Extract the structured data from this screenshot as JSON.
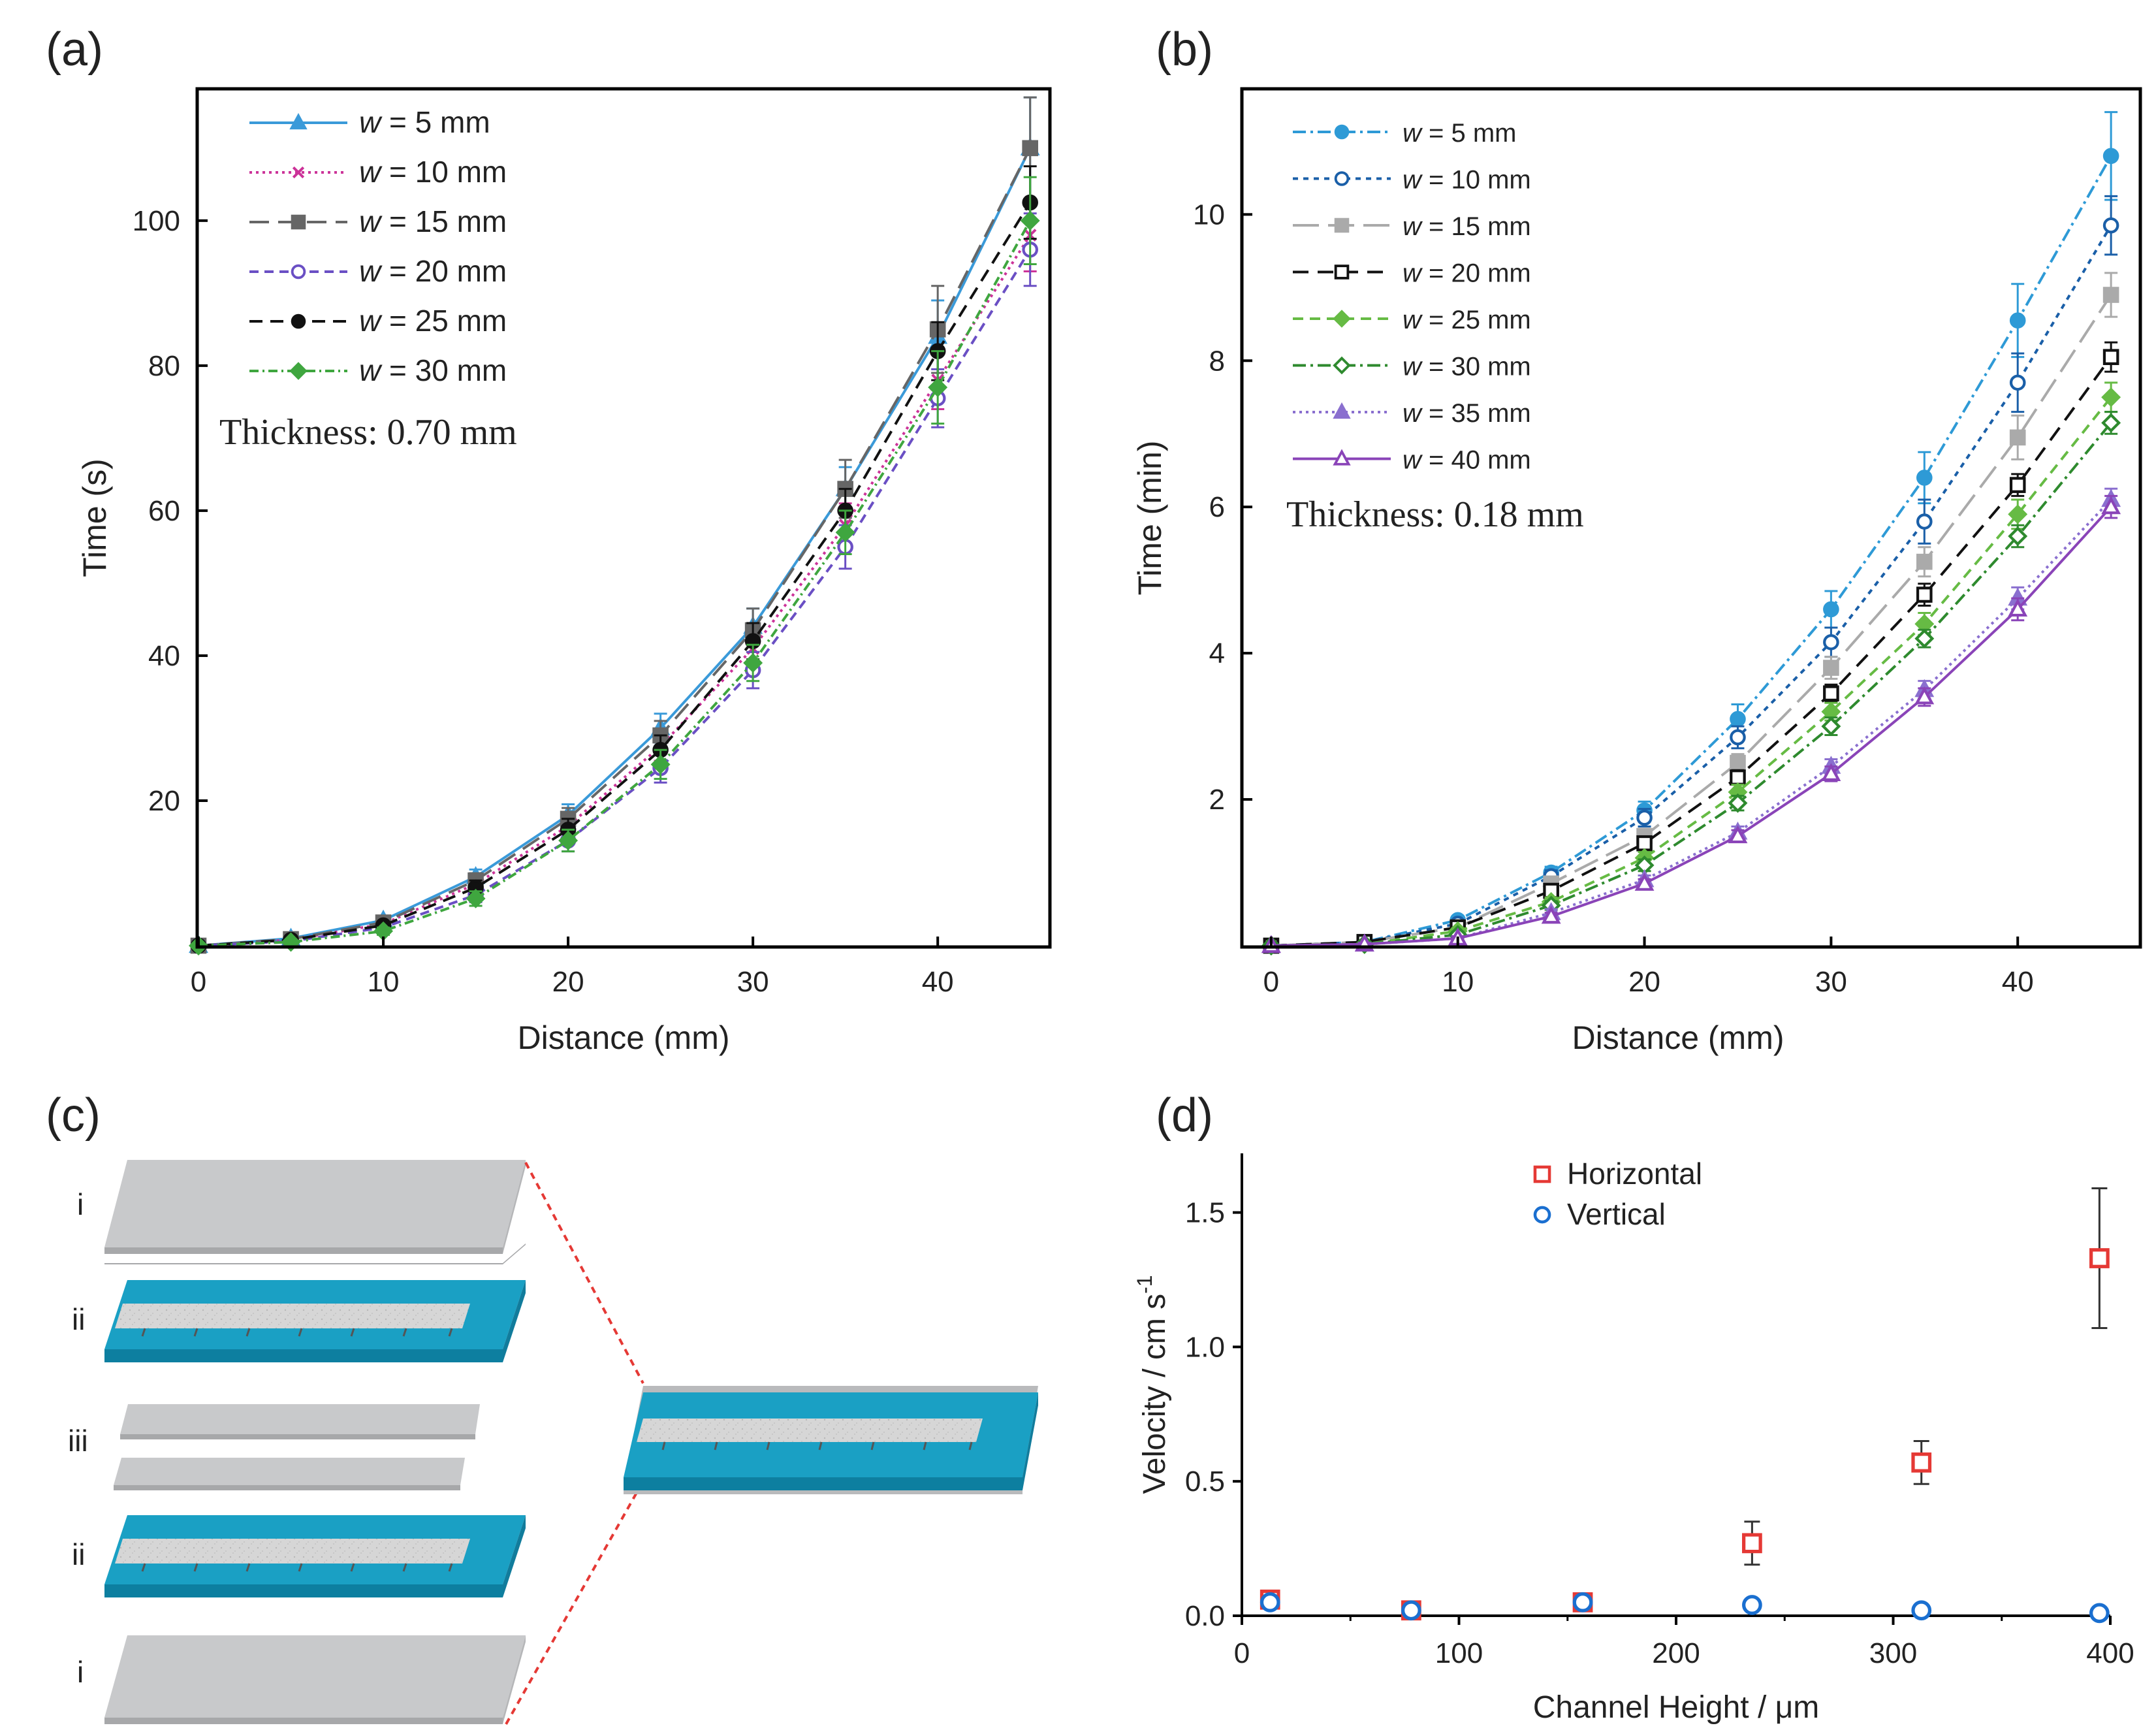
{
  "panels": {
    "a": "(a)",
    "b": "(b)",
    "c": "(c)",
    "d": "(d)"
  },
  "chart_data": [
    {
      "id": "a",
      "type": "line",
      "xlabel": "Distance (mm)",
      "ylabel": "Time (s)",
      "xlim": [
        0,
        46
      ],
      "ylim": [
        0,
        118
      ],
      "xticks": [
        0,
        10,
        20,
        30,
        40
      ],
      "yticks": [
        20,
        40,
        60,
        80,
        100
      ],
      "annotation": "Thickness: 0.70 mm",
      "x": [
        0,
        5,
        10,
        15,
        20,
        25,
        30,
        35,
        40,
        45
      ],
      "series": [
        {
          "name": "w = 5 mm",
          "var": "w",
          "rest": " = 5 mm",
          "color": "#3a9ad9",
          "dash": "",
          "marker": "tri",
          "values": [
            0,
            1,
            3.5,
            9.5,
            18,
            30,
            44,
            63,
            84,
            110
          ],
          "err": [
            0,
            0.3,
            0.5,
            1,
            1.5,
            2,
            2.5,
            3,
            5,
            7
          ]
        },
        {
          "name": "w = 10 mm",
          "var": "w",
          "rest": " = 10 mm",
          "color": "#cc3399",
          "dash": "4 6",
          "marker": "x",
          "values": [
            0,
            0.8,
            3,
            8.5,
            16.5,
            27.5,
            41,
            58,
            78,
            98
          ],
          "err": [
            0,
            0.3,
            0.5,
            1,
            1.5,
            2,
            2.5,
            3,
            4,
            5
          ]
        },
        {
          "name": "w = 15 mm",
          "var": "w",
          "rest": " = 15 mm",
          "color": "#666666",
          "dash": "30 14",
          "marker": "sq",
          "values": [
            0,
            0.9,
            3.2,
            9,
            17.5,
            29,
            43.5,
            63,
            85,
            110
          ],
          "err": [
            0,
            0.3,
            0.5,
            1,
            1.5,
            2,
            3,
            4,
            6,
            7
          ]
        },
        {
          "name": "w = 20 mm",
          "var": "w",
          "rest": " = 20 mm",
          "color": "#6a4fc4",
          "dash": "14 9",
          "marker": "ocirc",
          "values": [
            0,
            0.6,
            2.5,
            7,
            14.5,
            24.5,
            38,
            55,
            75.5,
            96
          ],
          "err": [
            0,
            0.3,
            0.5,
            1,
            1.5,
            2,
            2.5,
            3,
            4,
            5
          ]
        },
        {
          "name": "w = 25 mm",
          "var": "w",
          "rest": " = 25 mm",
          "color": "#111111",
          "dash": "20 12",
          "marker": "dot",
          "values": [
            0,
            0.8,
            2.8,
            8,
            16,
            27,
            42,
            60,
            82,
            102.5
          ],
          "err": [
            0,
            0.3,
            0.5,
            1,
            1.5,
            2,
            2.5,
            3,
            4,
            5
          ]
        },
        {
          "name": "w = 30 mm",
          "var": "w",
          "rest": " = 30 mm",
          "color": "#3fa63f",
          "dash": "14 6 3 6",
          "marker": "dia",
          "values": [
            0,
            0.5,
            2,
            6.5,
            14.5,
            25,
            39,
            57,
            77,
            100
          ],
          "err": [
            0,
            0.3,
            0.5,
            1,
            1.5,
            2,
            2.5,
            3,
            5,
            6
          ]
        }
      ]
    },
    {
      "id": "b",
      "type": "line",
      "xlabel": "Distance (mm)",
      "ylabel": "Time (min)",
      "xlim": [
        -1.5,
        46.5
      ],
      "ylim": [
        0,
        11.7
      ],
      "xticks": [
        0,
        10,
        20,
        30,
        40
      ],
      "yticks": [
        2,
        4,
        6,
        8,
        10
      ],
      "annotation": "Thickness: 0.18 mm",
      "x": [
        0,
        5,
        10,
        15,
        20,
        25,
        30,
        35,
        40,
        45
      ],
      "series": [
        {
          "name": "w = 5 mm",
          "var": "w",
          "rest": " = 5 mm",
          "color": "#2e9ad6",
          "dash": "20 7 4 7",
          "marker": "dot",
          "values": [
            0,
            0.05,
            0.35,
            1,
            1.85,
            3.1,
            4.6,
            6.4,
            8.55,
            10.8
          ],
          "err": [
            0,
            0.02,
            0.05,
            0.08,
            0.12,
            0.2,
            0.25,
            0.35,
            0.5,
            0.6
          ]
        },
        {
          "name": "w = 10 mm",
          "var": "w",
          "rest": " = 10 mm",
          "color": "#1a5fa8",
          "dash": "8 8",
          "marker": "ocirc",
          "values": [
            0,
            0.05,
            0.3,
            0.95,
            1.75,
            2.85,
            4.15,
            5.8,
            7.7,
            9.85
          ],
          "err": [
            0,
            0.02,
            0.05,
            0.08,
            0.12,
            0.15,
            0.2,
            0.3,
            0.4,
            0.4
          ]
        },
        {
          "name": "w = 15 mm",
          "var": "w",
          "rest": " = 15 mm",
          "color": "#aaaaaa",
          "dash": "40 14",
          "marker": "sq",
          "values": [
            0,
            0.05,
            0.25,
            0.85,
            1.5,
            2.5,
            3.8,
            5.25,
            6.95,
            8.9
          ],
          "err": [
            0,
            0.02,
            0.05,
            0.08,
            0.1,
            0.12,
            0.15,
            0.2,
            0.3,
            0.3
          ]
        },
        {
          "name": "w = 20 mm",
          "var": "w",
          "rest": " = 20 mm",
          "color": "#111111",
          "dash": "24 14",
          "marker": "osq",
          "values": [
            0,
            0.05,
            0.25,
            0.75,
            1.4,
            2.3,
            3.45,
            4.8,
            6.3,
            8.05
          ],
          "err": [
            0,
            0.02,
            0.04,
            0.06,
            0.08,
            0.1,
            0.12,
            0.15,
            0.15,
            0.2
          ]
        },
        {
          "name": "w = 25 mm",
          "var": "w",
          "rest": " = 25 mm",
          "color": "#66bb44",
          "dash": "16 10",
          "marker": "dia",
          "values": [
            0,
            0.02,
            0.2,
            0.6,
            1.2,
            2.1,
            3.2,
            4.4,
            5.9,
            7.5
          ],
          "err": [
            0,
            0.02,
            0.04,
            0.06,
            0.08,
            0.1,
            0.12,
            0.15,
            0.2,
            0.2
          ]
        },
        {
          "name": "w = 30 mm",
          "var": "w",
          "rest": " = 30 mm",
          "color": "#2e8a2e",
          "dash": "20 7 4 7",
          "marker": "odia",
          "values": [
            0,
            0.02,
            0.15,
            0.55,
            1.1,
            1.95,
            3,
            4.2,
            5.6,
            7.15
          ],
          "err": [
            0,
            0.02,
            0.04,
            0.06,
            0.08,
            0.1,
            0.12,
            0.12,
            0.15,
            0.15
          ]
        },
        {
          "name": "w = 35 mm",
          "var": "w",
          "rest": " = 35 mm",
          "color": "#8a6fcf",
          "dash": "4 6",
          "marker": "tri",
          "values": [
            0,
            0.02,
            0.1,
            0.45,
            0.9,
            1.55,
            2.45,
            3.5,
            4.75,
            6.1
          ],
          "err": [
            0,
            0.02,
            0.03,
            0.05,
            0.06,
            0.08,
            0.1,
            0.12,
            0.15,
            0.15
          ]
        },
        {
          "name": "w = 40 mm",
          "var": "w",
          "rest": " = 40 mm",
          "color": "#8a44b8",
          "dash": "",
          "marker": "otri",
          "values": [
            0,
            0.02,
            0.1,
            0.4,
            0.85,
            1.5,
            2.35,
            3.4,
            4.6,
            6
          ],
          "err": [
            0,
            0.02,
            0.03,
            0.05,
            0.06,
            0.08,
            0.1,
            0.12,
            0.15,
            0.15
          ]
        }
      ]
    },
    {
      "id": "d",
      "type": "scatter",
      "xlabel": "Channel Height / μm",
      "ylabel": "Velocity / cm s",
      "ylabel_sup": "-1",
      "xlim": [
        0,
        400
      ],
      "ylim": [
        0,
        1.72
      ],
      "xticks": [
        0,
        100,
        200,
        300,
        400
      ],
      "yticks": [
        0.0,
        0.5,
        1.0,
        1.5
      ],
      "ytick_labels": [
        "0.0",
        "0.5",
        "1.0",
        "1.5"
      ],
      "series": [
        {
          "name": "Horizontal",
          "color": "#e53935",
          "marker": "osq",
          "x": [
            13,
            78,
            157,
            235,
            313,
            395
          ],
          "values": [
            0.06,
            0.02,
            0.05,
            0.27,
            0.57,
            1.33
          ],
          "err": [
            0.02,
            0.01,
            0.02,
            0.08,
            0.08,
            0.26
          ]
        },
        {
          "name": "Vertical",
          "color": "#1a6fd0",
          "marker": "ocirc",
          "x": [
            13,
            78,
            157,
            235,
            313,
            395
          ],
          "values": [
            0.05,
            0.02,
            0.05,
            0.04,
            0.02,
            0.01
          ],
          "err": [
            0,
            0,
            0,
            0,
            0,
            0
          ]
        }
      ]
    }
  ],
  "diagram_c": {
    "layer_labels": [
      "i",
      "ii",
      "iii",
      "ii",
      "i"
    ],
    "colors": {
      "paper": "#c8c9cb",
      "paper_edge": "#a7a8aa",
      "tape": "#1aa0c4",
      "tape_edge": "#0d7fa0",
      "channel": "#d9d9d9",
      "guide": "#e53935"
    }
  }
}
